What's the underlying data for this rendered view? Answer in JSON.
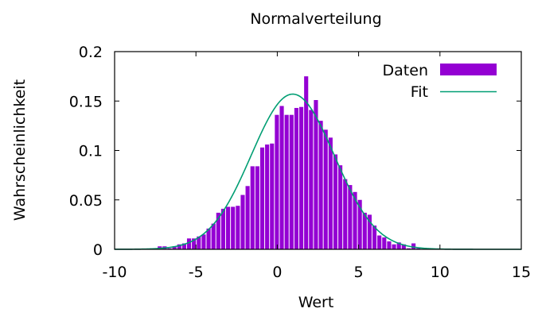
{
  "chart_data": {
    "type": "bar",
    "title": "Normalverteilung",
    "xlabel": "Wert",
    "ylabel": "Wahrscheinlichkeit",
    "xlim": [
      -10,
      15
    ],
    "ylim": [
      0,
      0.2
    ],
    "x_ticks": [
      "-10",
      "-5",
      "0",
      "5",
      "10",
      "15"
    ],
    "y_ticks": [
      "0",
      "0.05",
      "0.1",
      "0.15",
      "0.2"
    ],
    "grid": false,
    "legend_position": "top-right",
    "bin_width": 0.3,
    "series": [
      {
        "name": "Daten",
        "kind": "histogram",
        "color": "#9400d3",
        "x": [
          -7.2,
          -6.9,
          -6.6,
          -6.3,
          -6.0,
          -5.7,
          -5.4,
          -5.1,
          -4.8,
          -4.5,
          -4.2,
          -3.9,
          -3.6,
          -3.3,
          -3.0,
          -2.7,
          -2.4,
          -2.1,
          -1.8,
          -1.5,
          -1.2,
          -0.9,
          -0.6,
          -0.3,
          0.0,
          0.3,
          0.6,
          0.9,
          1.2,
          1.5,
          1.8,
          2.1,
          2.4,
          2.7,
          3.0,
          3.3,
          3.6,
          3.9,
          4.2,
          4.5,
          4.8,
          5.1,
          5.4,
          5.7,
          6.0,
          6.3,
          6.6,
          6.9,
          7.2,
          7.5,
          7.8,
          8.1,
          8.4,
          8.7
        ],
        "values": [
          0.003,
          0.003,
          0.001,
          0.003,
          0.005,
          0.006,
          0.011,
          0.011,
          0.013,
          0.015,
          0.021,
          0.026,
          0.037,
          0.041,
          0.043,
          0.043,
          0.044,
          0.055,
          0.064,
          0.084,
          0.084,
          0.103,
          0.106,
          0.107,
          0.136,
          0.145,
          0.136,
          0.136,
          0.143,
          0.144,
          0.175,
          0.141,
          0.151,
          0.13,
          0.121,
          0.113,
          0.096,
          0.085,
          0.071,
          0.065,
          0.058,
          0.05,
          0.037,
          0.035,
          0.024,
          0.014,
          0.012,
          0.008,
          0.005,
          0.007,
          0.005,
          0.001,
          0.006,
          0.001
        ]
      },
      {
        "name": "Fit",
        "kind": "line",
        "color": "#009e73",
        "mean": 0.95,
        "sigma": 2.55,
        "amplitude": 0.157
      }
    ]
  }
}
